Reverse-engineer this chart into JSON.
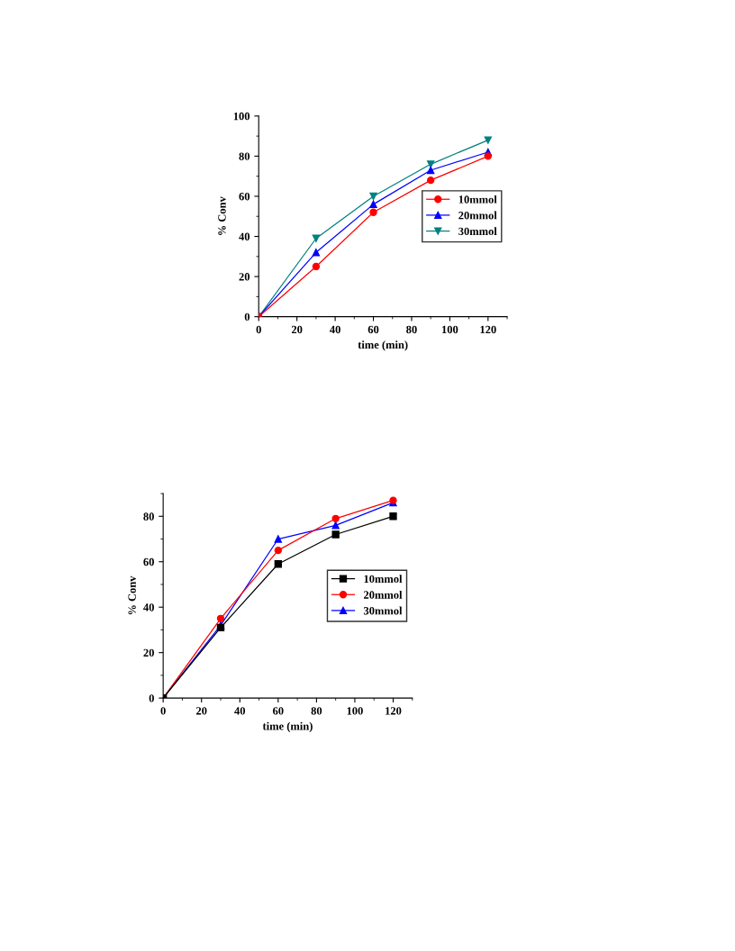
{
  "chart_data": [
    {
      "type": "line",
      "xlabel": "time (min)",
      "ylabel": "% Conv",
      "x": [
        0,
        30,
        60,
        90,
        120
      ],
      "xlim": [
        0,
        130
      ],
      "xticks": [
        0,
        20,
        40,
        60,
        80,
        100,
        120
      ],
      "ylim": [
        0,
        100
      ],
      "yticks": [
        0,
        20,
        40,
        60,
        80,
        100
      ],
      "grid": false,
      "legend": "right",
      "series": [
        {
          "name": "10mmol",
          "color": "#ff0000",
          "marker": "circle",
          "values": [
            0,
            25,
            52,
            68,
            80
          ]
        },
        {
          "name": "20mmol",
          "color": "#0000ff",
          "marker": "triangle",
          "values": [
            0,
            32,
            56,
            73,
            82
          ]
        },
        {
          "name": "30mmol",
          "color": "#008080",
          "marker": "triangle_down",
          "values": [
            0,
            39,
            60,
            76,
            88
          ]
        }
      ]
    },
    {
      "type": "line",
      "xlabel": "time (min)",
      "ylabel": "% Conv",
      "x": [
        0,
        30,
        60,
        90,
        120
      ],
      "xlim": [
        0,
        130
      ],
      "xticks": [
        0,
        20,
        40,
        60,
        80,
        100,
        120
      ],
      "ylim": [
        0,
        90
      ],
      "yticks": [
        0,
        20,
        40,
        60,
        80
      ],
      "grid": false,
      "legend": "right",
      "series": [
        {
          "name": "10mmol",
          "color": "#000000",
          "marker": "square",
          "values": [
            0,
            31,
            59,
            72,
            80
          ]
        },
        {
          "name": "20mmol",
          "color": "#ff0000",
          "marker": "circle",
          "values": [
            0,
            35,
            65,
            79,
            87
          ]
        },
        {
          "name": "30mmol",
          "color": "#0000ff",
          "marker": "triangle",
          "values": [
            0,
            32,
            70,
            76,
            86
          ]
        }
      ]
    }
  ]
}
